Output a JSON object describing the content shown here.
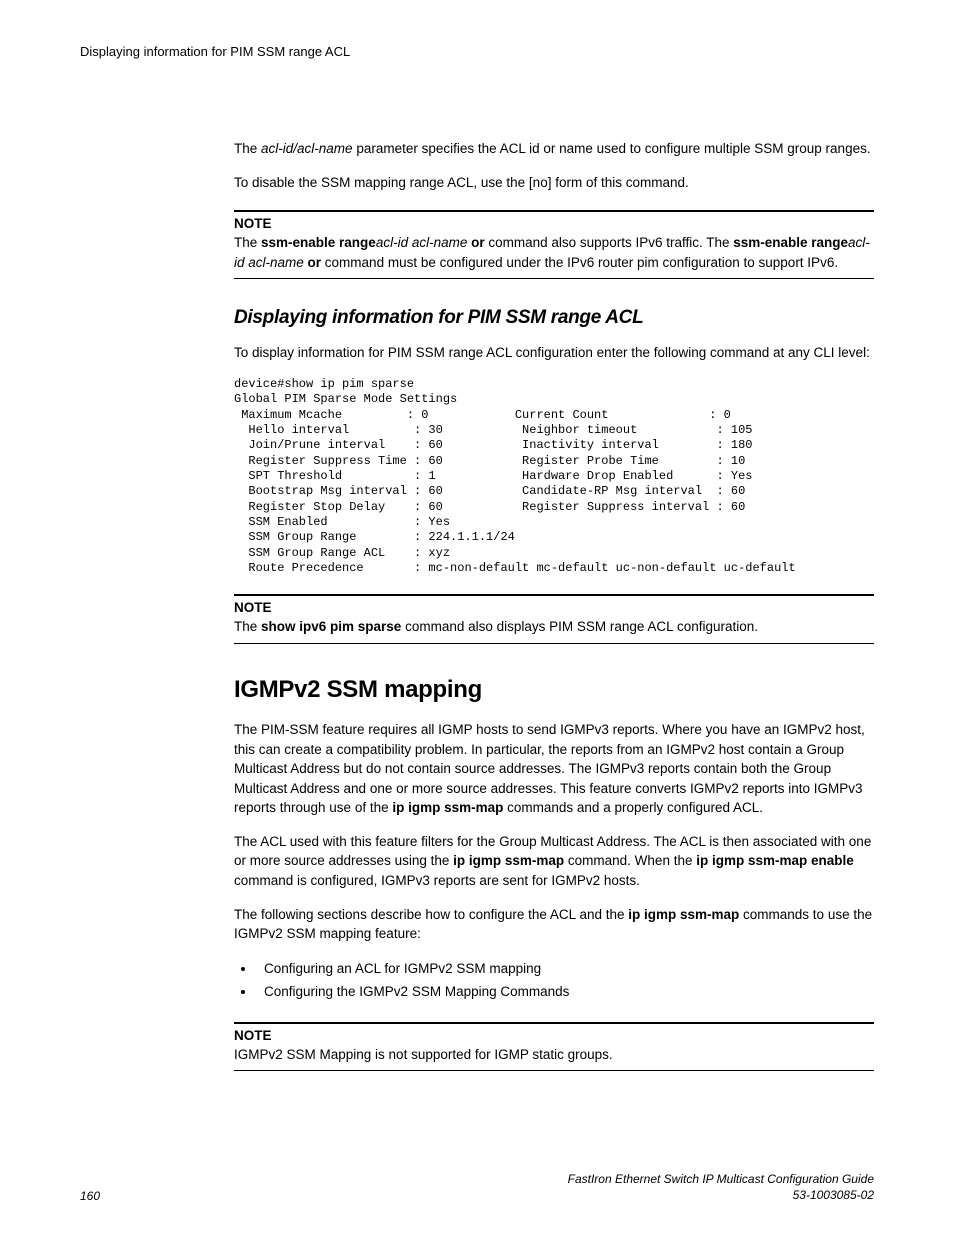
{
  "runningHead": "Displaying information for PIM SSM range ACL",
  "para1_pre": "The ",
  "para1_em": "acl-id/acl-name",
  "para1_post": " parameter specifies the ACL id or name used to configure multiple SSM group ranges.",
  "para2": "To disable the SSM mapping range ACL, use the [no] form of this command.",
  "note1": {
    "label": "NOTE",
    "pre": "The ",
    "b1": "ssm-enable range",
    "i1": "acl-id acl-name",
    "mid1": " ",
    "b1b": "or",
    "mid2": " command also supports IPv6 traffic. The ",
    "b2": "ssm-enable range",
    "i2": "acl-id acl-name",
    "mid3": " ",
    "b2b": "or",
    "post": " command must be configured under the IPv6 router pim configuration to support IPv6."
  },
  "h2": "Displaying information for PIM SSM range ACL",
  "para3": "To display information for PIM SSM range ACL configuration enter the following command at any CLI level:",
  "code": "device#show ip pim sparse\nGlobal PIM Sparse Mode Settings\n Maximum Mcache         : 0            Current Count              : 0\n  Hello interval         : 30           Neighbor timeout           : 105\n  Join/Prune interval    : 60           Inactivity interval        : 180\n  Register Suppress Time : 60           Register Probe Time        : 10\n  SPT Threshold          : 1            Hardware Drop Enabled      : Yes\n  Bootstrap Msg interval : 60           Candidate-RP Msg interval  : 60\n  Register Stop Delay    : 60           Register Suppress interval : 60\n  SSM Enabled            : Yes\n  SSM Group Range        : 224.1.1.1/24\n  SSM Group Range ACL    : xyz\n  Route Precedence       : mc-non-default mc-default uc-non-default uc-default",
  "note2": {
    "label": "NOTE",
    "pre": "The ",
    "b": "show ipv6 pim sparse",
    "post": " command also displays PIM SSM range ACL configuration."
  },
  "h1": "IGMPv2 SSM mapping",
  "para4_pre": "The PIM-SSM feature requires all IGMP hosts to send IGMPv3 reports. Where you have an IGMPv2 host, this can create a compatibility problem. In particular, the reports from an IGMPv2 host contain a Group Multicast Address but do not contain source addresses. The IGMPv3 reports contain both the Group Multicast Address and one or more source addresses. This feature converts IGMPv2 reports into IGMPv3 reports through use of the ",
  "para4_b": "ip igmp ssm-map",
  "para4_post": " commands and a properly configured ACL.",
  "para5_pre": "The ACL used with this feature filters for the Group Multicast Address. The ACL is then associated with one or more source addresses using the ",
  "para5_b1": "ip igmp ssm-map",
  "para5_mid": " command. When the ",
  "para5_b2": "ip igmp ssm-map enable",
  "para5_post": " command is configured, IGMPv3 reports are sent for IGMPv2 hosts.",
  "para6_pre": "The following sections describe how to configure the ACL and the ",
  "para6_b": "ip igmp ssm-map",
  "para6_post": " commands to use the IGMPv2 SSM mapping feature:",
  "bullets": [
    "Configuring an ACL for IGMPv2 SSM mapping",
    "Configuring the IGMPv2 SSM Mapping Commands"
  ],
  "note3": {
    "label": "NOTE",
    "body": "IGMPv2 SSM Mapping is not supported for IGMP static groups."
  },
  "footer": {
    "pageNum": "160",
    "title": "FastIron Ethernet Switch IP Multicast Configuration Guide",
    "docnum": "53-1003085-02"
  }
}
